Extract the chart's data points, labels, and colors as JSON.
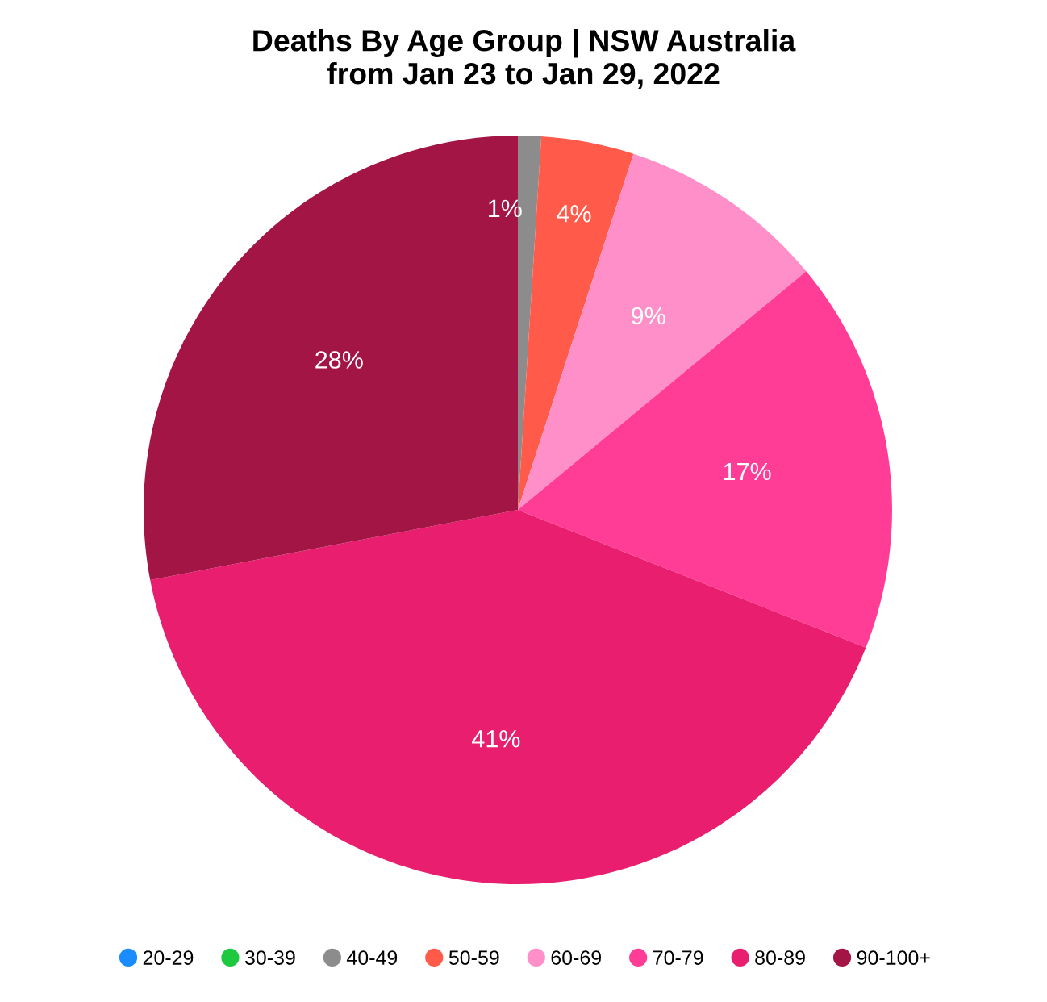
{
  "chart_data": {
    "type": "pie",
    "title": "Deaths By Age Group | NSW Australia\nfrom Jan 23 to Jan 29, 2022",
    "categories": [
      "20-29",
      "30-39",
      "40-49",
      "50-59",
      "60-69",
      "70-79",
      "80-89",
      "90-100+"
    ],
    "values": [
      0,
      0,
      1,
      4,
      9,
      17,
      41,
      28
    ],
    "value_labels": [
      null,
      null,
      "1%",
      "4%",
      "9%",
      "17%",
      "41%",
      "28%"
    ],
    "colors": [
      "#1a8cff",
      "#1ec940",
      "#8c8c8c",
      "#ff5a4a",
      "#ff8fc8",
      "#ff3d96",
      "#e91e6e",
      "#a31545"
    ],
    "legend": "bottom"
  }
}
